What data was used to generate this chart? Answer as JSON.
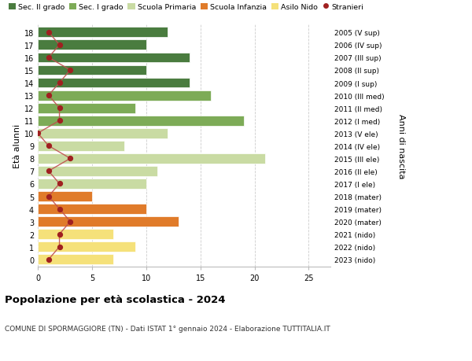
{
  "ages": [
    0,
    1,
    2,
    3,
    4,
    5,
    6,
    7,
    8,
    9,
    10,
    11,
    12,
    13,
    14,
    15,
    16,
    17,
    18
  ],
  "right_labels": [
    "2023 (nido)",
    "2022 (nido)",
    "2021 (nido)",
    "2020 (mater)",
    "2019 (mater)",
    "2018 (mater)",
    "2017 (I ele)",
    "2016 (II ele)",
    "2015 (III ele)",
    "2014 (IV ele)",
    "2013 (V ele)",
    "2012 (I med)",
    "2011 (II med)",
    "2010 (III med)",
    "2009 (I sup)",
    "2008 (II sup)",
    "2007 (III sup)",
    "2006 (IV sup)",
    "2005 (V sup)"
  ],
  "bar_values": [
    7,
    9,
    7,
    13,
    10,
    5,
    10,
    11,
    21,
    8,
    12,
    19,
    9,
    16,
    14,
    10,
    14,
    10,
    12
  ],
  "bar_colors": [
    "#f5e17a",
    "#f5e17a",
    "#f5e17a",
    "#e07b2a",
    "#e07b2a",
    "#e07b2a",
    "#c9dba3",
    "#c9dba3",
    "#c9dba3",
    "#c9dba3",
    "#c9dba3",
    "#7dab57",
    "#7dab57",
    "#7dab57",
    "#4a7c3f",
    "#4a7c3f",
    "#4a7c3f",
    "#4a7c3f",
    "#4a7c3f"
  ],
  "stranieri_values": [
    1,
    2,
    2,
    3,
    2,
    1,
    2,
    1,
    3,
    1,
    0,
    2,
    2,
    1,
    2,
    3,
    1,
    2,
    1
  ],
  "legend_labels": [
    "Sec. II grado",
    "Sec. I grado",
    "Scuola Primaria",
    "Scuola Infanzia",
    "Asilo Nido",
    "Stranieri"
  ],
  "legend_colors": [
    "#4a7c3f",
    "#7dab57",
    "#c9dba3",
    "#e07b2a",
    "#f5e17a",
    "#a02020"
  ],
  "ylabel_left": "Età alunni",
  "ylabel_right": "Anni di nascita",
  "title": "Popolazione per età scolastica - 2024",
  "subtitle": "COMUNE DI SPORMAGGIORE (TN) - Dati ISTAT 1° gennaio 2024 - Elaborazione TUTTITALIA.IT",
  "xlim": [
    0,
    27
  ],
  "bar_height": 0.8,
  "grid_color": "#cccccc",
  "bg_color": "#ffffff",
  "stranieri_color": "#a02020",
  "stranieri_line_color": "#c05050"
}
